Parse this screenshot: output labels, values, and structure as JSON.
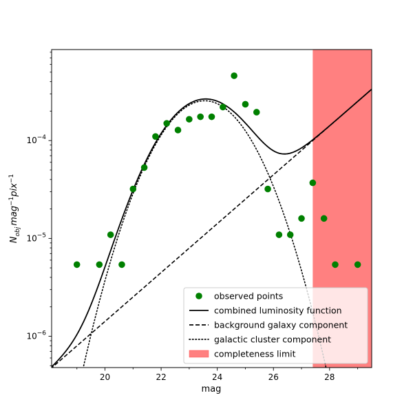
{
  "chart_data": {
    "type": "scatter",
    "xlabel": "mag",
    "ylabel": "N_obj mag^-1 pix^-1",
    "xlim": [
      18.1,
      29.5
    ],
    "ylim_log10": [
      -6.32,
      -3.07
    ],
    "yscale": "log",
    "grid": false,
    "legend_position": "lower-right",
    "x_ticks": [
      20,
      22,
      24,
      26,
      28
    ],
    "y_ticks": [
      {
        "exp": -6,
        "label": "10",
        "sup": "−6"
      },
      {
        "exp": -5,
        "label": "10",
        "sup": "−5"
      },
      {
        "exp": -4,
        "label": "10",
        "sup": "−4"
      }
    ],
    "ylabel_parts": {
      "n": "N",
      "obj": "obj",
      "mag": "mag",
      "magexp": "−1",
      "pix": "pix",
      "pixexp": "−1"
    },
    "completeness_limit": {
      "x_from": 27.4,
      "x_to": 29.5,
      "color": "#ff8080"
    },
    "observed_points": {
      "name": "observed points",
      "color": "#008000",
      "x": [
        19.0,
        19.8,
        20.2,
        20.6,
        21.0,
        21.4,
        21.8,
        22.2,
        22.6,
        23.0,
        23.4,
        23.8,
        24.2,
        24.6,
        25.0,
        25.4,
        25.8,
        26.2,
        26.6,
        27.0,
        27.4,
        27.8,
        28.2,
        29.0
      ],
      "y": [
        5.4e-06,
        5.4e-06,
        1.09e-05,
        5.4e-06,
        3.2e-05,
        5.3e-05,
        0.00011,
        0.00015,
        0.000128,
        0.000165,
        0.000175,
        0.000175,
        0.00022,
        0.00046,
        0.000235,
        0.000195,
        3.2e-05,
        1.09e-05,
        1.09e-05,
        1.6e-05,
        3.7e-05,
        1.6e-05,
        5.4e-06,
        5.4e-06
      ]
    },
    "background_component": {
      "name": "background galaxy component",
      "style": "dashed",
      "anchor_points": [
        [
          18.1,
          4.75e-07
        ],
        [
          27.4,
          0.0001
        ]
      ]
    },
    "cluster_component": {
      "name": "galactic cluster component",
      "style": "dotted",
      "peak_mag": 23.55,
      "peak_value": 0.000255,
      "sigma_mag": 1.22
    },
    "combined_function": {
      "name": "combined luminosity function",
      "style": "solid"
    },
    "legend": [
      {
        "label": "observed points",
        "kind": "marker"
      },
      {
        "label": "combined luminosity function",
        "kind": "solid"
      },
      {
        "label": "background galaxy component",
        "kind": "dashed"
      },
      {
        "label": "galactic cluster component",
        "kind": "dotted"
      },
      {
        "label": "completeness limit",
        "kind": "patch"
      }
    ]
  }
}
